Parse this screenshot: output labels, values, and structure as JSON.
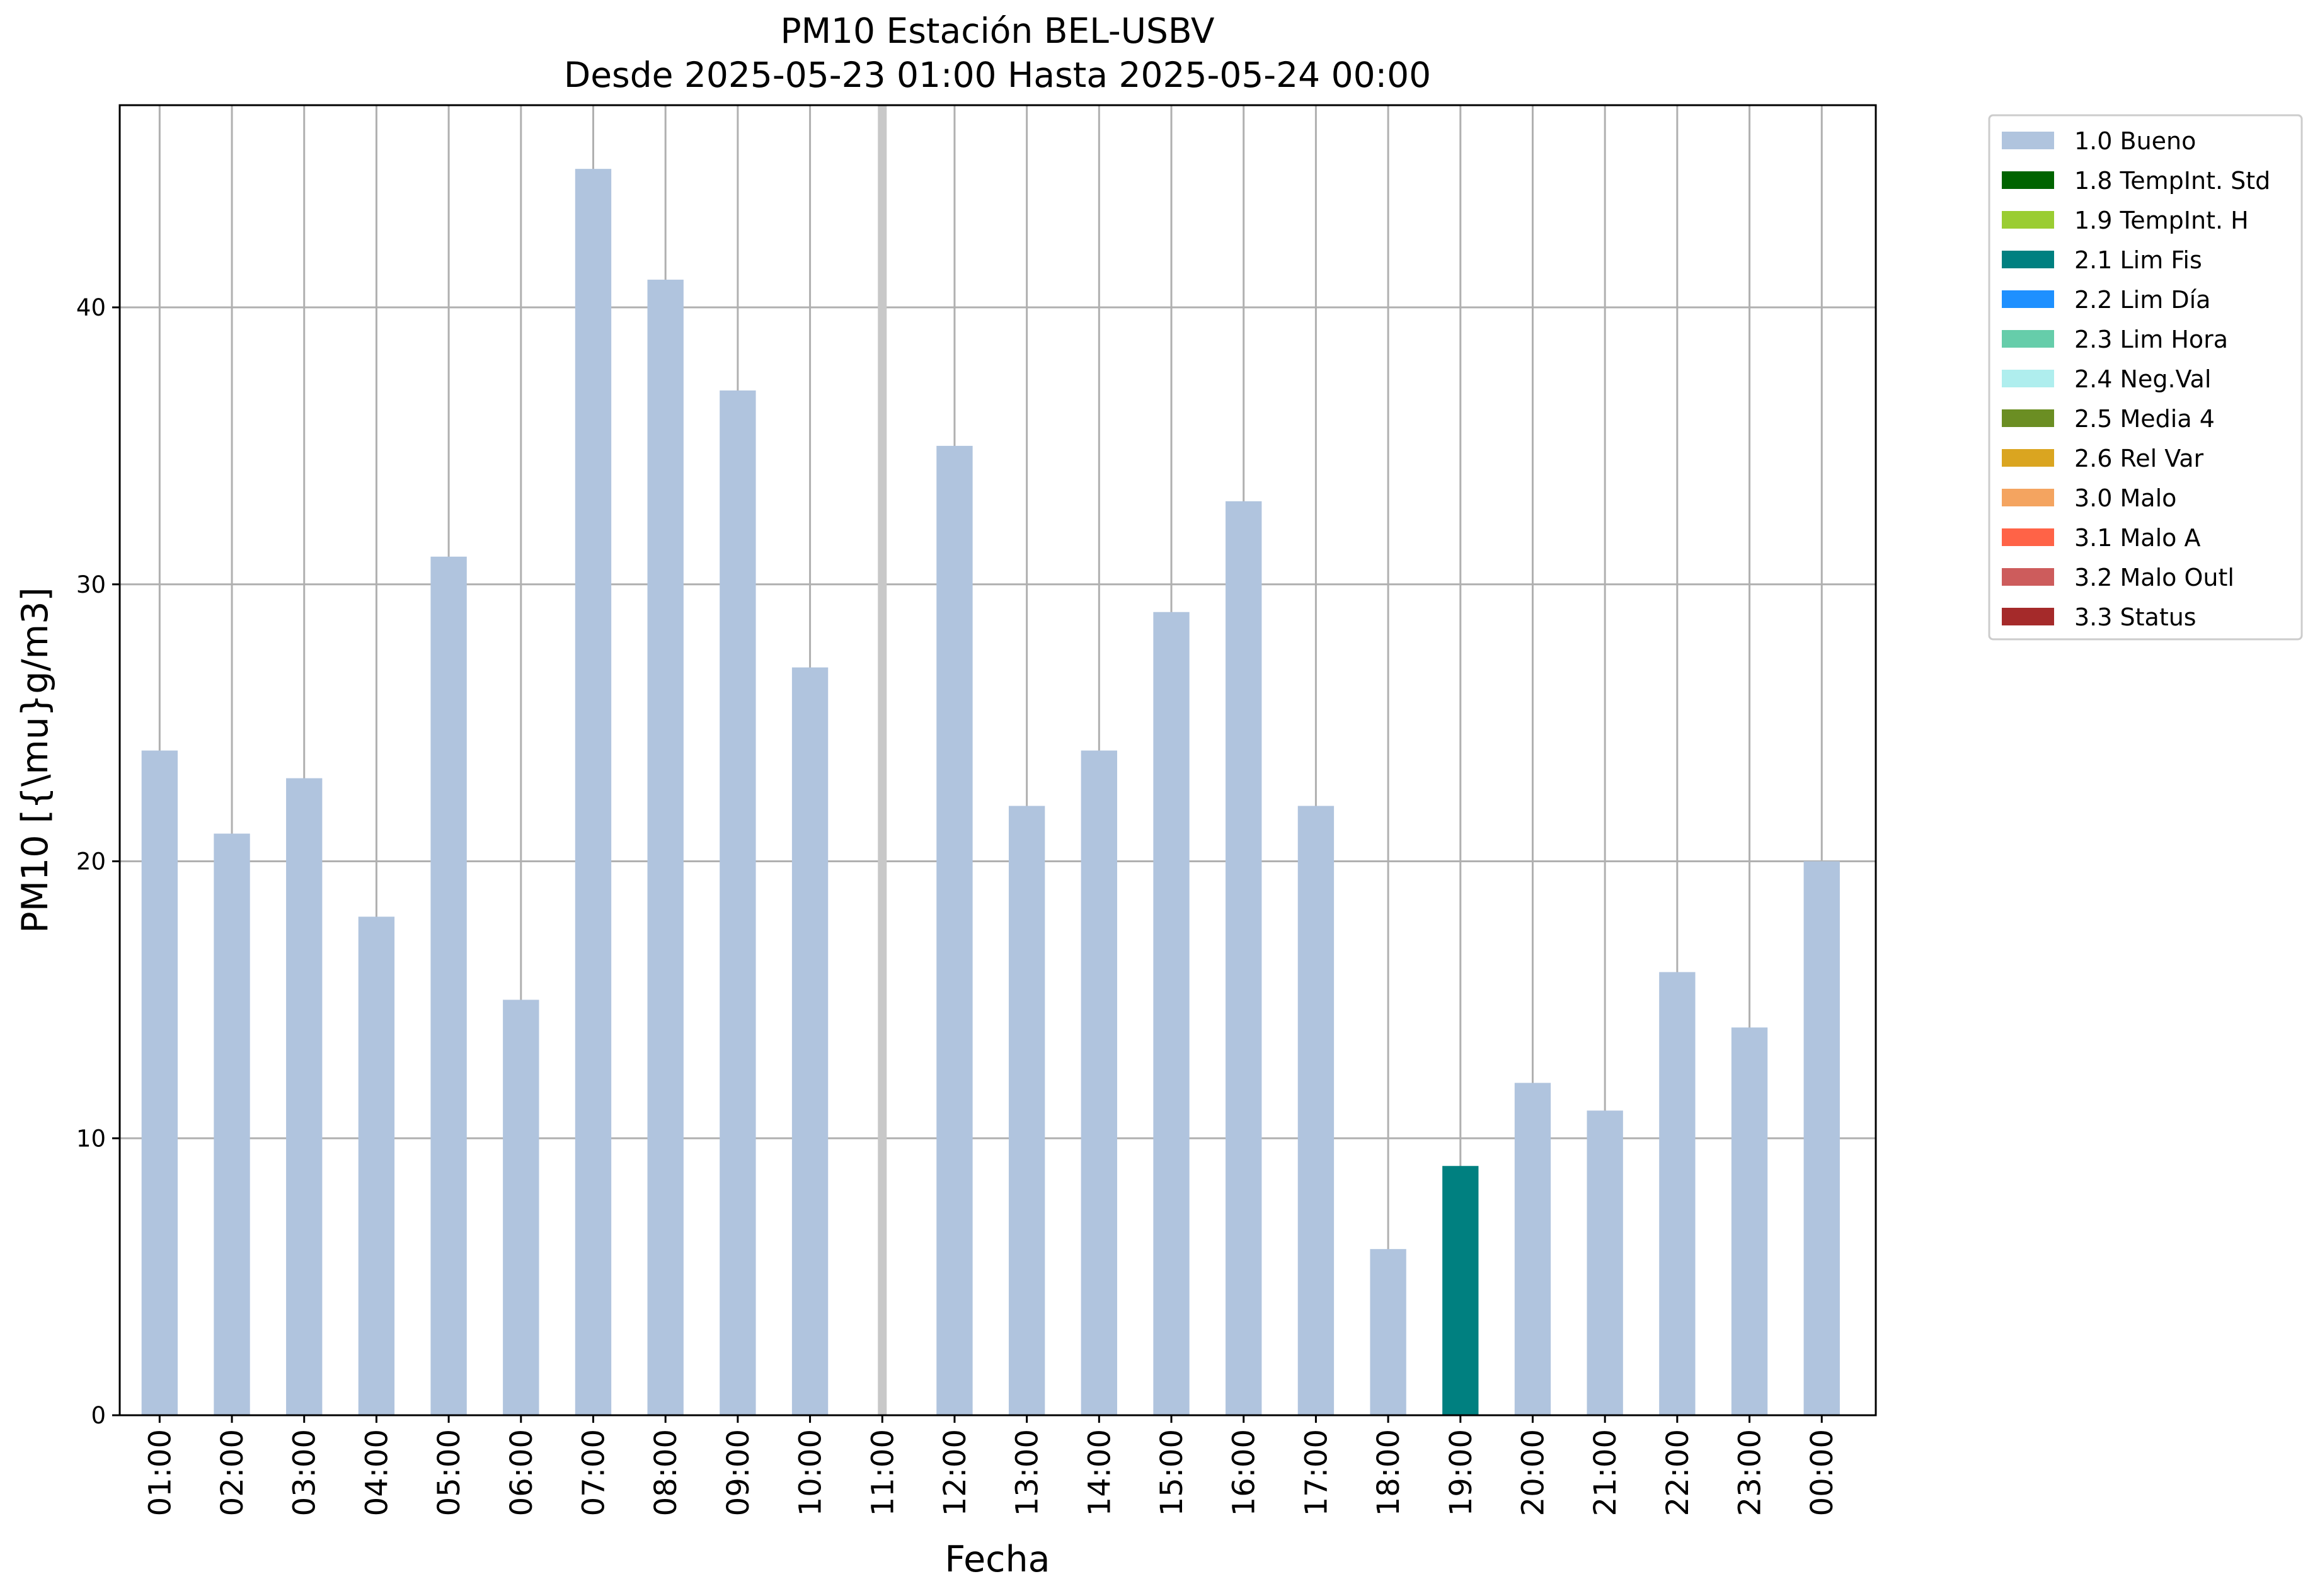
{
  "chart_data": {
    "type": "bar",
    "title": "PM10 Estación BEL-USBV",
    "subtitle": "Desde 2025-05-23 01:00 Hasta 2025-05-24 00:00",
    "xlabel": "Fecha",
    "ylabel": "PM10 [{\\mu}g/m3]",
    "ylim": [
      0,
      47.3
    ],
    "yticks": [
      0,
      10,
      20,
      30,
      40
    ],
    "grid": true,
    "legend_position": "outside-top-right",
    "categories": [
      "01:00",
      "02:00",
      "03:00",
      "04:00",
      "05:00",
      "06:00",
      "07:00",
      "08:00",
      "09:00",
      "10:00",
      "11:00",
      "12:00",
      "13:00",
      "14:00",
      "15:00",
      "16:00",
      "17:00",
      "18:00",
      "19:00",
      "20:00",
      "21:00",
      "22:00",
      "23:00",
      "00:00"
    ],
    "values": [
      24,
      21,
      23,
      18,
      31,
      15,
      45,
      41,
      37,
      27,
      null,
      35,
      22,
      24,
      29,
      33,
      22,
      6,
      9,
      12,
      11,
      16,
      14,
      20
    ],
    "flags": [
      "1.0 Bueno",
      "1.0 Bueno",
      "1.0 Bueno",
      "1.0 Bueno",
      "1.0 Bueno",
      "1.0 Bueno",
      "1.0 Bueno",
      "1.0 Bueno",
      "1.0 Bueno",
      "1.0 Bueno",
      null,
      "1.0 Bueno",
      "1.0 Bueno",
      "1.0 Bueno",
      "1.0 Bueno",
      "1.0 Bueno",
      "1.0 Bueno",
      "1.0 Bueno",
      "2.1 Lim Fis",
      "1.0 Bueno",
      "1.0 Bueno",
      "1.0 Bueno",
      "1.0 Bueno",
      "1.0 Bueno"
    ],
    "missing_marker_category": "11:00",
    "legend": [
      {
        "label": "1.0 Bueno",
        "color": "#b0c4de"
      },
      {
        "label": "1.8 TempInt. Std",
        "color": "#006400"
      },
      {
        "label": "1.9 TempInt. H",
        "color": "#9acd32"
      },
      {
        "label": "2.1 Lim Fis",
        "color": "#008080"
      },
      {
        "label": "2.2 Lim Día",
        "color": "#1e90ff"
      },
      {
        "label": "2.3 Lim Hora",
        "color": "#66cdaa"
      },
      {
        "label": "2.4 Neg.Val",
        "color": "#afeeee"
      },
      {
        "label": "2.5 Media 4",
        "color": "#6b8e23"
      },
      {
        "label": "2.6 Rel Var",
        "color": "#daa520"
      },
      {
        "label": "3.0 Malo",
        "color": "#f4a460"
      },
      {
        "label": "3.1 Malo A",
        "color": "#ff6347"
      },
      {
        "label": "3.2 Malo Outl",
        "color": "#cd5c5c"
      },
      {
        "label": "3.3 Status",
        "color": "#a52a2a"
      }
    ],
    "colors": {
      "grid": "#b0b0b0",
      "missing_marker": "#c8c8c8",
      "axis": "#000000"
    }
  }
}
